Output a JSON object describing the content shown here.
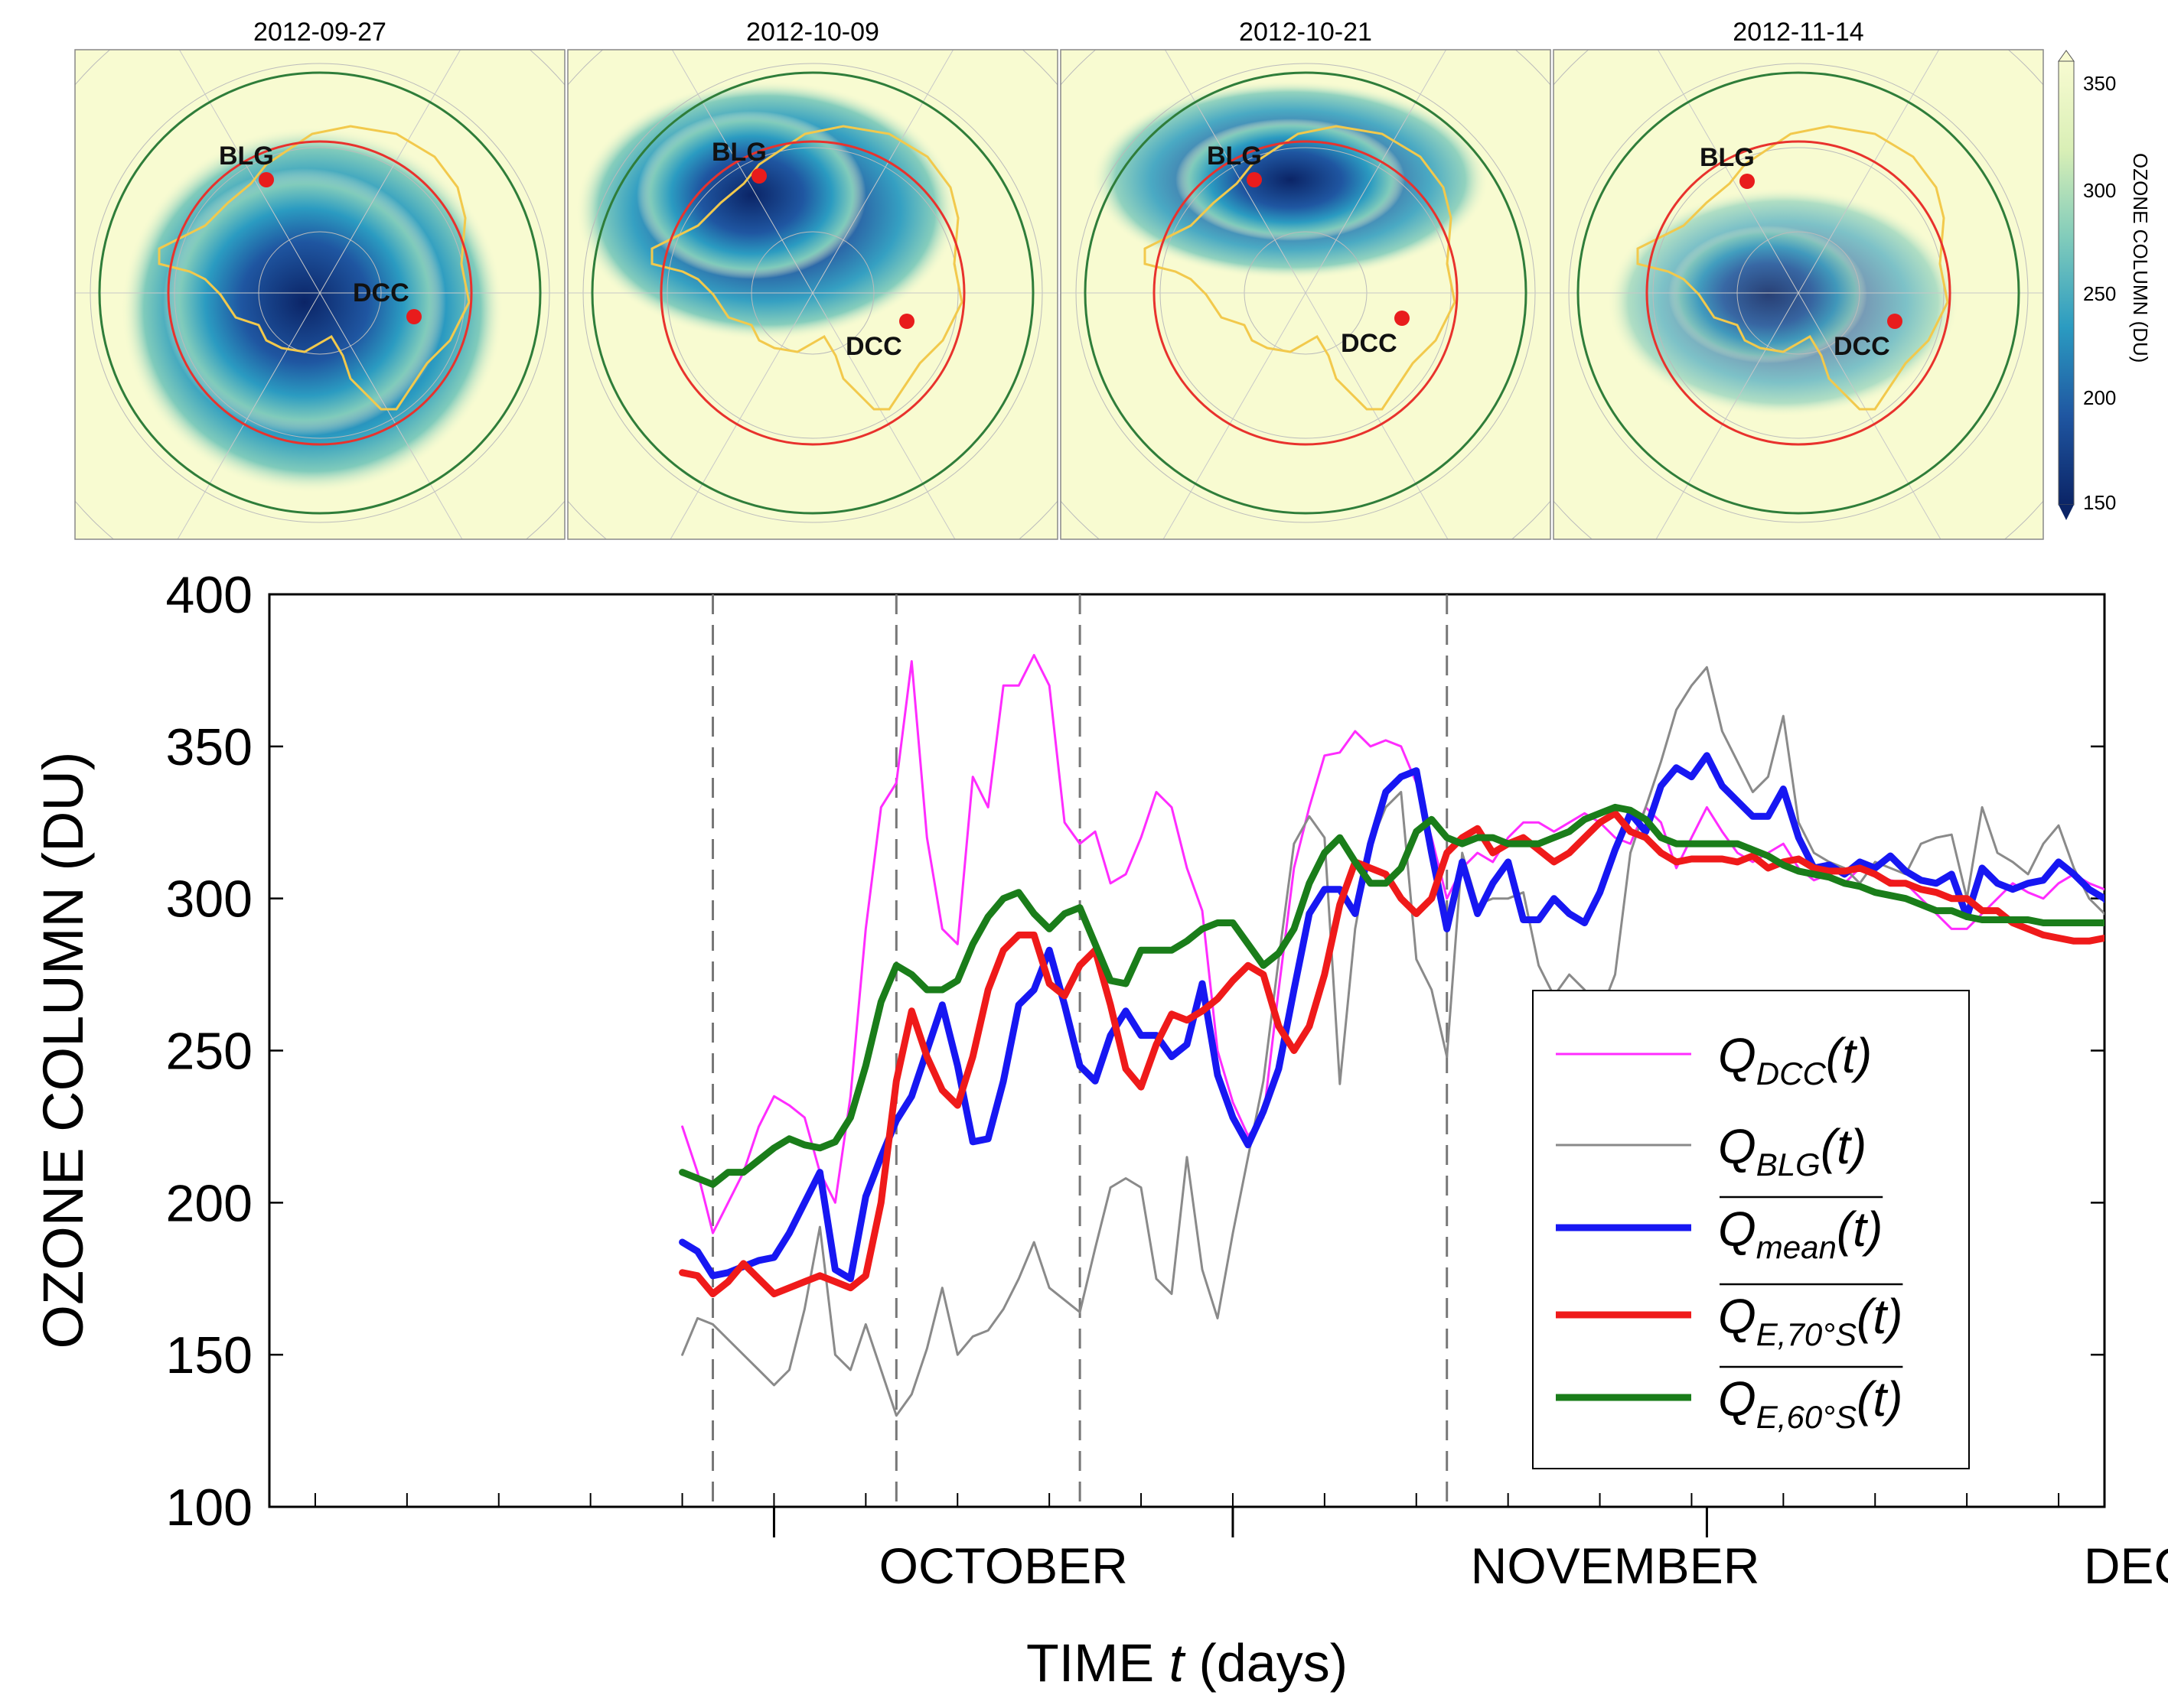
{
  "maps": {
    "dates": [
      "2012-09-27",
      "2012-10-09",
      "2012-10-21",
      "2012-11-14"
    ],
    "station_labels": {
      "blg": "BLG",
      "dcc": "DCC"
    },
    "colorbar": {
      "label": "OZONE COLUMN (DU)",
      "ticks": [
        "350",
        "300",
        "250",
        "200",
        "150"
      ],
      "colors": [
        "#f8fbd1",
        "#d9efb6",
        "#80cbbb",
        "#2b9bc1",
        "#1f56a1",
        "#0b2466"
      ]
    },
    "colors": {
      "outer_circle": "#2f7d3a",
      "inner_circle": "#e8322d",
      "coast": "#f2c94c",
      "station": "#e81c1c"
    }
  },
  "chart_data": {
    "type": "line",
    "title": "",
    "xlabel": "TIME t (days)",
    "xlabel_parts": [
      "TIME ",
      "t",
      " (days)"
    ],
    "ylabel": "OZONE COLUMN (DU)",
    "ylim": [
      100,
      400
    ],
    "yticks": [
      100,
      150,
      200,
      250,
      300,
      350,
      400
    ],
    "ytick_labels": [
      "100",
      "150",
      "200",
      "250",
      "300",
      "350",
      "400"
    ],
    "x_unit": "day of 2012 (1 = 1 Sep)",
    "xlim": [
      -2,
      118
    ],
    "month_labels": [
      "OCTOBER",
      "NOVEMBER",
      "DECEMBER"
    ],
    "month_label_positions": [
      46,
      86,
      126
    ],
    "month_boundaries": [
      31,
      61,
      92
    ],
    "minor_ticks": [
      1,
      7,
      13,
      19,
      25,
      31,
      37,
      43,
      49,
      55,
      61,
      67,
      73,
      79,
      85,
      91,
      97,
      103,
      109,
      115
    ],
    "event_days": [
      27,
      39,
      51,
      75
    ],
    "legend_position": "bottom-right",
    "series": [
      {
        "name": "Q_DCC(t)",
        "label_main": "Q",
        "label_sub": "DCC",
        "label_tail": "(t)",
        "overline": false,
        "color": "#ff2cff",
        "stroke_width": 3,
        "x": [
          25,
          26,
          27,
          28,
          29,
          30,
          31,
          32,
          33,
          34,
          35,
          36,
          37,
          38,
          39,
          40,
          41,
          42,
          43,
          44,
          45,
          46,
          47,
          48,
          49,
          50,
          51,
          52,
          53,
          54,
          55,
          56,
          57,
          58,
          59,
          60,
          61,
          62,
          63,
          64,
          65,
          66,
          67,
          68,
          69,
          70,
          71,
          72,
          73,
          74,
          75,
          76,
          77,
          78,
          79,
          80,
          81,
          82,
          83,
          84,
          85,
          86,
          87,
          88,
          89,
          90,
          91,
          92,
          93,
          94,
          95,
          96,
          97,
          98,
          99,
          100,
          101,
          102,
          103,
          104,
          105,
          106,
          107,
          108,
          109,
          110,
          111,
          112,
          113,
          114,
          115,
          116,
          117,
          118,
          119,
          120,
          121,
          122,
          123
        ],
        "y": [
          225,
          210,
          190,
          200,
          210,
          225,
          235,
          232,
          228,
          210,
          200,
          235,
          290,
          330,
          338,
          378,
          320,
          290,
          285,
          340,
          330,
          370,
          370,
          380,
          370,
          325,
          318,
          322,
          305,
          308,
          320,
          335,
          330,
          310,
          296,
          250,
          233,
          222,
          228,
          270,
          310,
          330,
          347,
          348,
          355,
          350,
          352,
          350,
          338,
          320,
          300,
          310,
          315,
          312,
          320,
          325,
          325,
          322,
          325,
          328,
          325,
          320,
          318,
          330,
          325,
          310,
          320,
          330,
          322,
          315,
          312,
          315,
          318,
          310,
          306,
          308,
          305,
          310,
          308,
          306,
          305,
          300,
          295,
          290,
          290,
          295,
          300,
          305,
          302,
          300,
          305,
          308,
          305,
          303,
          300,
          295,
          290,
          305,
          307
        ]
      },
      {
        "name": "Q_BLG(t)",
        "label_main": "Q",
        "label_sub": "BLG",
        "label_tail": "(t)",
        "overline": false,
        "color": "#8a8a8a",
        "stroke_width": 3,
        "x": [
          25,
          26,
          27,
          28,
          29,
          30,
          31,
          32,
          33,
          34,
          35,
          36,
          37,
          38,
          39,
          40,
          41,
          42,
          43,
          44,
          45,
          46,
          47,
          48,
          49,
          50,
          51,
          52,
          53,
          54,
          55,
          56,
          57,
          58,
          59,
          60,
          61,
          62,
          63,
          64,
          65,
          66,
          67,
          68,
          69,
          70,
          71,
          72,
          73,
          74,
          75,
          76,
          77,
          78,
          79,
          80,
          81,
          82,
          83,
          84,
          85,
          86,
          87,
          88,
          89,
          90,
          91,
          92,
          93,
          94,
          95,
          96,
          97,
          98,
          99,
          100,
          101,
          102,
          103,
          104,
          105,
          106,
          107,
          108,
          109,
          110,
          111,
          112,
          113,
          114,
          115,
          116,
          117,
          118,
          119,
          120,
          121,
          122,
          123
        ],
        "y": [
          150,
          162,
          160,
          155,
          150,
          145,
          140,
          145,
          165,
          192,
          150,
          145,
          160,
          145,
          130,
          137,
          152,
          172,
          150,
          156,
          158,
          165,
          175,
          187,
          172,
          168,
          164,
          185,
          205,
          208,
          205,
          175,
          170,
          215,
          178,
          162,
          190,
          215,
          240,
          280,
          318,
          327,
          320,
          239,
          290,
          318,
          330,
          335,
          280,
          270,
          248,
          315,
          298,
          300,
          300,
          302,
          278,
          268,
          275,
          270,
          262,
          275,
          315,
          330,
          345,
          362,
          370,
          376,
          355,
          345,
          335,
          340,
          360,
          325,
          315,
          312,
          310,
          305,
          312,
          310,
          308,
          318,
          320,
          321,
          300,
          330,
          315,
          312,
          308,
          318,
          324,
          310,
          300,
          295,
          288,
          284,
          295,
          300,
          279
        ]
      },
      {
        "name": "mean Q_mean(t)",
        "label_main": "Q",
        "label_sub": "mean",
        "label_tail": "(t)",
        "overline": true,
        "color": "#1717f2",
        "stroke_width": 9,
        "x": [
          25,
          26,
          27,
          28,
          29,
          30,
          31,
          32,
          33,
          34,
          35,
          36,
          37,
          38,
          39,
          40,
          41,
          42,
          43,
          44,
          45,
          46,
          47,
          48,
          49,
          50,
          51,
          52,
          53,
          54,
          55,
          56,
          57,
          58,
          59,
          60,
          61,
          62,
          63,
          64,
          65,
          66,
          67,
          68,
          69,
          70,
          71,
          72,
          73,
          74,
          75,
          76,
          77,
          78,
          79,
          80,
          81,
          82,
          83,
          84,
          85,
          86,
          87,
          88,
          89,
          90,
          91,
          92,
          93,
          94,
          95,
          96,
          97,
          98,
          99,
          100,
          101,
          102,
          103,
          104,
          105,
          106,
          107,
          108,
          109,
          110,
          111,
          112,
          113,
          114,
          115,
          116,
          117,
          118,
          119,
          120,
          121,
          122,
          123
        ],
        "y": [
          187,
          184,
          176,
          177,
          179,
          181,
          182,
          190,
          200,
          210,
          178,
          175,
          202,
          215,
          227,
          235,
          250,
          265,
          245,
          220,
          221,
          240,
          265,
          270,
          283,
          265,
          245,
          240,
          255,
          263,
          255,
          255,
          248,
          252,
          272,
          242,
          228,
          219,
          230,
          244,
          270,
          295,
          303,
          303,
          295,
          318,
          335,
          340,
          342,
          315,
          290,
          312,
          295,
          305,
          312,
          293,
          293,
          300,
          295,
          292,
          302,
          316,
          328,
          322,
          337,
          343,
          340,
          347,
          337,
          332,
          327,
          327,
          336,
          320,
          310,
          311,
          308,
          312,
          310,
          314,
          309,
          306,
          305,
          308,
          294,
          310,
          305,
          303,
          305,
          306,
          312,
          308,
          303,
          300,
          295,
          300,
          296,
          300,
          305
        ]
      },
      {
        "name": "mean Q_E,70°S(t)",
        "label_main": "Q",
        "label_sub": "E,70°S",
        "label_tail": "(t)",
        "overline": true,
        "color": "#ef1a1a",
        "stroke_width": 9,
        "x": [
          25,
          26,
          27,
          28,
          29,
          30,
          31,
          32,
          33,
          34,
          35,
          36,
          37,
          38,
          39,
          40,
          41,
          42,
          43,
          44,
          45,
          46,
          47,
          48,
          49,
          50,
          51,
          52,
          53,
          54,
          55,
          56,
          57,
          58,
          59,
          60,
          61,
          62,
          63,
          64,
          65,
          66,
          67,
          68,
          69,
          70,
          71,
          72,
          73,
          74,
          75,
          76,
          77,
          78,
          79,
          80,
          81,
          82,
          83,
          84,
          85,
          86,
          87,
          88,
          89,
          90,
          91,
          92,
          93,
          94,
          95,
          96,
          97,
          98,
          99,
          100,
          101,
          102,
          103,
          104,
          105,
          106,
          107,
          108,
          109,
          110,
          111,
          112,
          113,
          114,
          115,
          116,
          117,
          118,
          119,
          120,
          121,
          122,
          123
        ],
        "y": [
          177,
          176,
          170,
          174,
          180,
          175,
          170,
          172,
          174,
          176,
          174,
          172,
          176,
          200,
          240,
          263,
          248,
          237,
          232,
          248,
          270,
          283,
          288,
          288,
          272,
          268,
          278,
          283,
          265,
          244,
          238,
          252,
          262,
          260,
          263,
          267,
          273,
          278,
          275,
          258,
          250,
          258,
          275,
          298,
          312,
          310,
          308,
          300,
          295,
          300,
          315,
          320,
          323,
          315,
          318,
          320,
          316,
          312,
          315,
          320,
          325,
          328,
          322,
          320,
          315,
          312,
          313,
          313,
          313,
          312,
          314,
          310,
          312,
          313,
          310,
          309,
          309,
          310,
          308,
          305,
          305,
          303,
          302,
          300,
          300,
          296,
          296,
          292,
          290,
          288,
          287,
          286,
          286,
          287,
          287,
          287,
          287,
          287,
          287
        ]
      },
      {
        "name": "mean Q_E,60°S(t)",
        "label_main": "Q",
        "label_sub": "E,60°S",
        "label_tail": "(t)",
        "overline": true,
        "color": "#1a7d1a",
        "stroke_width": 9,
        "x": [
          25,
          26,
          27,
          28,
          29,
          30,
          31,
          32,
          33,
          34,
          35,
          36,
          37,
          38,
          39,
          40,
          41,
          42,
          43,
          44,
          45,
          46,
          47,
          48,
          49,
          50,
          51,
          52,
          53,
          54,
          55,
          56,
          57,
          58,
          59,
          60,
          61,
          62,
          63,
          64,
          65,
          66,
          67,
          68,
          69,
          70,
          71,
          72,
          73,
          74,
          75,
          76,
          77,
          78,
          79,
          80,
          81,
          82,
          83,
          84,
          85,
          86,
          87,
          88,
          89,
          90,
          91,
          92,
          93,
          94,
          95,
          96,
          97,
          98,
          99,
          100,
          101,
          102,
          103,
          104,
          105,
          106,
          107,
          108,
          109,
          110,
          111,
          112,
          113,
          114,
          115,
          116,
          117,
          118,
          119,
          120,
          121,
          122,
          123
        ],
        "y": [
          210,
          208,
          206,
          210,
          210,
          214,
          218,
          221,
          219,
          218,
          220,
          228,
          245,
          266,
          278,
          275,
          270,
          270,
          273,
          285,
          294,
          300,
          302,
          295,
          290,
          295,
          297,
          285,
          273,
          272,
          283,
          283,
          283,
          286,
          290,
          292,
          292,
          285,
          278,
          282,
          290,
          305,
          315,
          320,
          312,
          305,
          305,
          310,
          322,
          326,
          320,
          318,
          320,
          320,
          318,
          318,
          318,
          320,
          322,
          326,
          328,
          330,
          329,
          326,
          320,
          318,
          318,
          318,
          318,
          318,
          316,
          314,
          311,
          309,
          308,
          307,
          305,
          304,
          302,
          301,
          300,
          298,
          296,
          296,
          294,
          293,
          293,
          293,
          293,
          292,
          292,
          292,
          292,
          292,
          292,
          292,
          292,
          292,
          292
        ]
      }
    ]
  }
}
